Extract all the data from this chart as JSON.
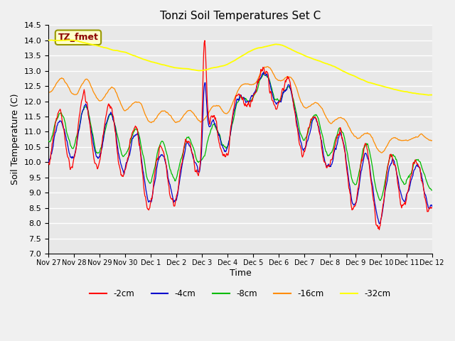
{
  "title": "Tonzi Soil Temperatures Set C",
  "xlabel": "Time",
  "ylabel": "Soil Temperature (C)",
  "ylim": [
    7.0,
    14.5
  ],
  "xlim": [
    0,
    15
  ],
  "annotation_text": "TZ_fmet",
  "annotation_color": "#8B0000",
  "annotation_bg": "#FFFFCC",
  "annotation_edge": "#999900",
  "plot_bg": "#E8E8E8",
  "fig_bg": "#F0F0F0",
  "color_2cm": "#FF0000",
  "color_4cm": "#0000CC",
  "color_8cm": "#00BB00",
  "color_16cm": "#FF8C00",
  "color_32cm": "#FFFF00",
  "legend_labels": [
    "-2cm",
    "-4cm",
    "-8cm",
    "-16cm",
    "-32cm"
  ],
  "x_tick_labels": [
    "Nov 27",
    "Nov 28",
    "Nov 29",
    "Nov 30",
    "Dec 1",
    "Dec 2",
    "Dec 3",
    "Dec 4",
    "Dec 5",
    "Dec 6",
    "Dec 7",
    "Dec 8",
    "Dec 9",
    "Dec 10",
    "Dec 11",
    "Dec 12"
  ],
  "days": 15,
  "pts_per_day": 48
}
